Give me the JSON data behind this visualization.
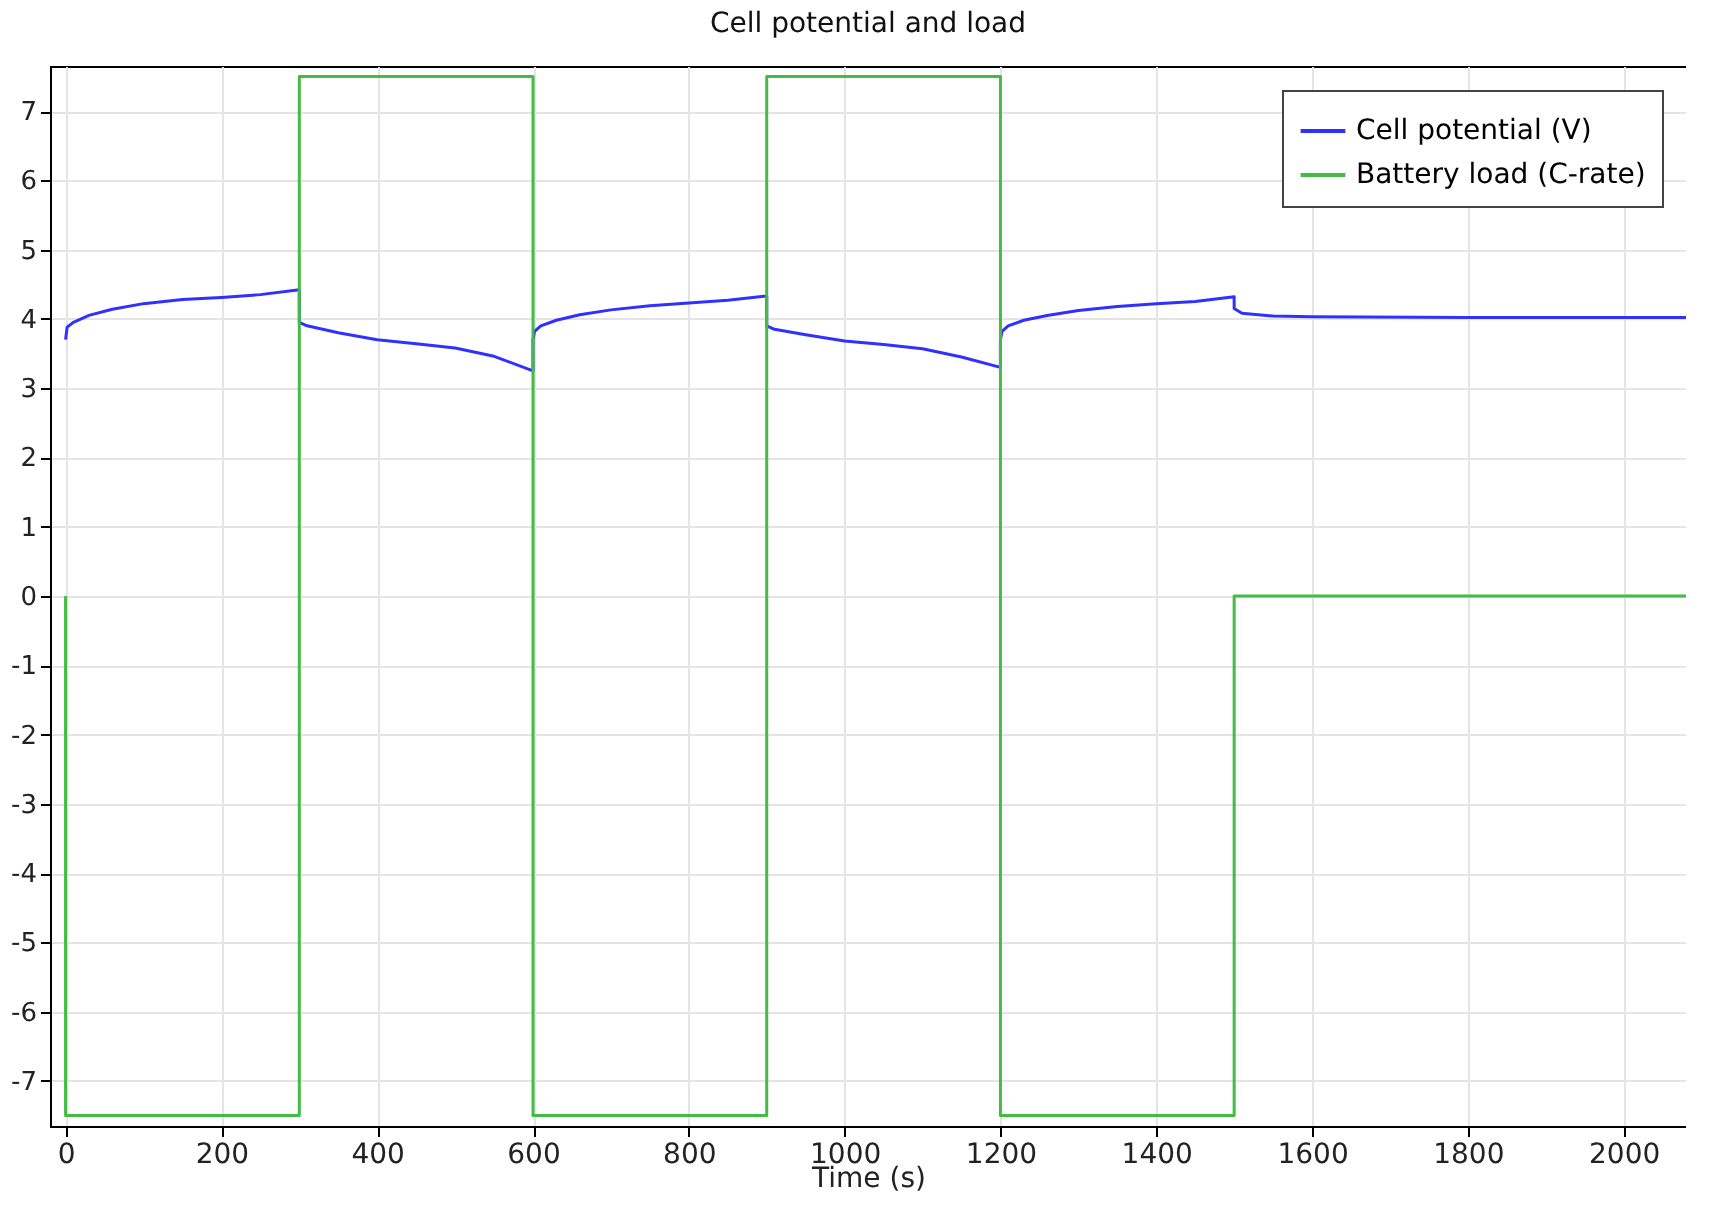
{
  "chart_data": {
    "type": "line",
    "title": "Cell potential and load",
    "xlabel": "Time (s)",
    "xlim": [
      -20,
      2080
    ],
    "xticks": [
      0,
      200,
      400,
      600,
      800,
      1000,
      1200,
      1400,
      1600,
      1800,
      2000
    ],
    "ylim": [
      -7.65,
      7.65
    ],
    "yticks": [
      -7,
      -6,
      -5,
      -4,
      -3,
      -2,
      -1,
      0,
      1,
      2,
      3,
      4,
      5,
      6,
      7
    ],
    "grid": true,
    "legend": "top right",
    "marker": "none",
    "line_style": "solid",
    "series": [
      {
        "name": "Cell potential (V)",
        "color": "#3030ff",
        "x": [
          0,
          2,
          10,
          30,
          60,
          100,
          150,
          200,
          250,
          300,
          300,
          310,
          350,
          400,
          450,
          500,
          550,
          600,
          600,
          602,
          610,
          630,
          660,
          700,
          750,
          800,
          850,
          900,
          900,
          910,
          950,
          1000,
          1050,
          1100,
          1150,
          1200,
          1200,
          1202,
          1210,
          1230,
          1260,
          1300,
          1350,
          1400,
          1450,
          1500,
          1500,
          1510,
          1550,
          1600,
          1800,
          2080
        ],
        "values": [
          3.7,
          3.88,
          3.95,
          4.05,
          4.14,
          4.22,
          4.28,
          4.31,
          4.35,
          4.42,
          3.95,
          3.9,
          3.8,
          3.7,
          3.64,
          3.58,
          3.46,
          3.25,
          3.7,
          3.82,
          3.9,
          3.98,
          4.06,
          4.13,
          4.19,
          4.23,
          4.27,
          4.33,
          3.9,
          3.85,
          3.77,
          3.68,
          3.63,
          3.57,
          3.45,
          3.3,
          3.7,
          3.82,
          3.9,
          3.98,
          4.05,
          4.12,
          4.18,
          4.22,
          4.25,
          4.32,
          4.15,
          4.08,
          4.04,
          4.03,
          4.02,
          4.02
        ]
      },
      {
        "name": "Battery load (C-rate)",
        "color": "#44bb44",
        "x": [
          0,
          0,
          300,
          300,
          600,
          600,
          900,
          900,
          1200,
          1200,
          1500,
          1500,
          2080
        ],
        "values": [
          0,
          -7.5,
          -7.5,
          7.5,
          7.5,
          -7.5,
          -7.5,
          7.5,
          7.5,
          -7.5,
          -7.5,
          0,
          0
        ]
      }
    ]
  }
}
